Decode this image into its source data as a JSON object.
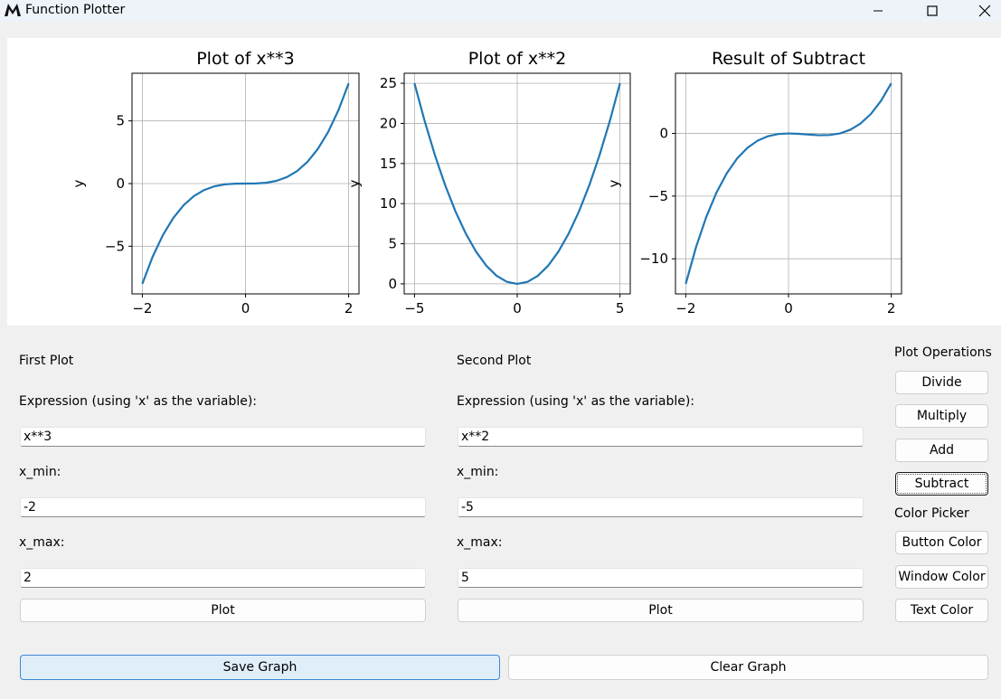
{
  "window": {
    "title": "Function Plotter",
    "minimize_glyph": "—",
    "maximize_glyph": "☐",
    "close_glyph": "✕"
  },
  "plots": [
    {
      "title": "Plot of x**3",
      "ylabel": "y",
      "xlim": [
        -2.2,
        2.2
      ],
      "ylim": [
        -8.8,
        8.8
      ],
      "xticks": [
        -2,
        0,
        2
      ],
      "yticks": [
        -5,
        0,
        5
      ],
      "x": [
        -2.0,
        -1.8,
        -1.6,
        -1.4,
        -1.2,
        -1.0,
        -0.8,
        -0.6,
        -0.4,
        -0.2,
        0.0,
        0.2,
        0.4,
        0.6,
        0.8,
        1.0,
        1.2,
        1.4,
        1.6,
        1.8,
        2.0
      ],
      "y": [
        -8.0,
        -5.832,
        -4.096,
        -2.744,
        -1.728,
        -1.0,
        -0.512,
        -0.216,
        -0.064,
        -0.008,
        0.0,
        0.008,
        0.064,
        0.216,
        0.512,
        1.0,
        1.728,
        2.744,
        4.096,
        5.832,
        8.0
      ]
    },
    {
      "title": "Plot of x**2",
      "ylabel": "y",
      "xlim": [
        -5.5,
        5.5
      ],
      "ylim": [
        -1.25,
        26.25
      ],
      "xticks": [
        -5,
        0,
        5
      ],
      "yticks": [
        0,
        5,
        10,
        15,
        20,
        25
      ],
      "x": [
        -5.0,
        -4.5,
        -4.0,
        -3.5,
        -3.0,
        -2.5,
        -2.0,
        -1.5,
        -1.0,
        -0.5,
        0.0,
        0.5,
        1.0,
        1.5,
        2.0,
        2.5,
        3.0,
        3.5,
        4.0,
        4.5,
        5.0
      ],
      "y": [
        25.0,
        20.25,
        16.0,
        12.25,
        9.0,
        6.25,
        4.0,
        2.25,
        1.0,
        0.25,
        0.0,
        0.25,
        1.0,
        2.25,
        4.0,
        6.25,
        9.0,
        12.25,
        16.0,
        20.25,
        25.0
      ]
    },
    {
      "title": "Result of Subtract",
      "ylabel": "y",
      "xlim": [
        -2.2,
        2.2
      ],
      "ylim": [
        -12.8,
        4.8
      ],
      "xticks": [
        -2,
        0,
        2
      ],
      "yticks": [
        -10,
        -5,
        0
      ],
      "x": [
        -2.0,
        -1.8,
        -1.6,
        -1.4,
        -1.2,
        -1.0,
        -0.8,
        -0.6,
        -0.4,
        -0.2,
        0.0,
        0.2,
        0.4,
        0.6,
        0.8,
        1.0,
        1.2,
        1.4,
        1.6,
        1.8,
        2.0
      ],
      "y": [
        -12.0,
        -9.072,
        -6.656,
        -4.704,
        -3.168,
        -2.0,
        -1.152,
        -0.576,
        -0.224,
        -0.048,
        0.0,
        -0.032,
        -0.096,
        -0.144,
        -0.128,
        0.0,
        0.288,
        0.784,
        1.536,
        2.592,
        4.0
      ]
    }
  ],
  "chart_data": [
    {
      "type": "line",
      "title": "Plot of x**3",
      "xlabel": "",
      "ylabel": "y",
      "xlim": [
        -2.2,
        2.2
      ],
      "ylim": [
        -8.8,
        8.8
      ],
      "grid": true,
      "x": [
        -2,
        -1,
        0,
        1,
        2
      ],
      "y": [
        -8,
        -1,
        0,
        1,
        8
      ]
    },
    {
      "type": "line",
      "title": "Plot of x**2",
      "xlabel": "",
      "ylabel": "y",
      "xlim": [
        -5.5,
        5.5
      ],
      "ylim": [
        -1.25,
        26.25
      ],
      "grid": true,
      "x": [
        -5,
        -2.5,
        0,
        2.5,
        5
      ],
      "y": [
        25,
        6.25,
        0,
        6.25,
        25
      ]
    },
    {
      "type": "line",
      "title": "Result of Subtract",
      "xlabel": "",
      "ylabel": "y",
      "xlim": [
        -2.2,
        2.2
      ],
      "ylim": [
        -12.8,
        4.8
      ],
      "grid": true,
      "x": [
        -2,
        -1,
        0,
        1,
        2
      ],
      "y": [
        -12,
        -2,
        0,
        0,
        4
      ]
    }
  ],
  "first": {
    "heading": "First Plot",
    "expr_label": "Expression (using 'x' as the variable):",
    "expr": "x**3",
    "xmin_label": "x_min:",
    "xmin": "-2",
    "xmax_label": "x_max:",
    "xmax": "2",
    "plot_label": "Plot"
  },
  "second": {
    "heading": "Second Plot",
    "expr_label": "Expression (using 'x' as the variable):",
    "expr": "x**2",
    "xmin_label": "x_min:",
    "xmin": "-5",
    "xmax_label": "x_max:",
    "xmax": "5",
    "plot_label": "Plot"
  },
  "ops": {
    "heading": "Plot Operations",
    "divide": "Divide",
    "multiply": "Multiply",
    "add": "Add",
    "subtract": "Subtract"
  },
  "colors": {
    "heading": "Color Picker",
    "button": "Button Color",
    "window": "Window Color",
    "text": "Text Color",
    "line": "#1f77b4"
  },
  "bottom": {
    "save": "Save Graph",
    "clear": "Clear Graph"
  }
}
